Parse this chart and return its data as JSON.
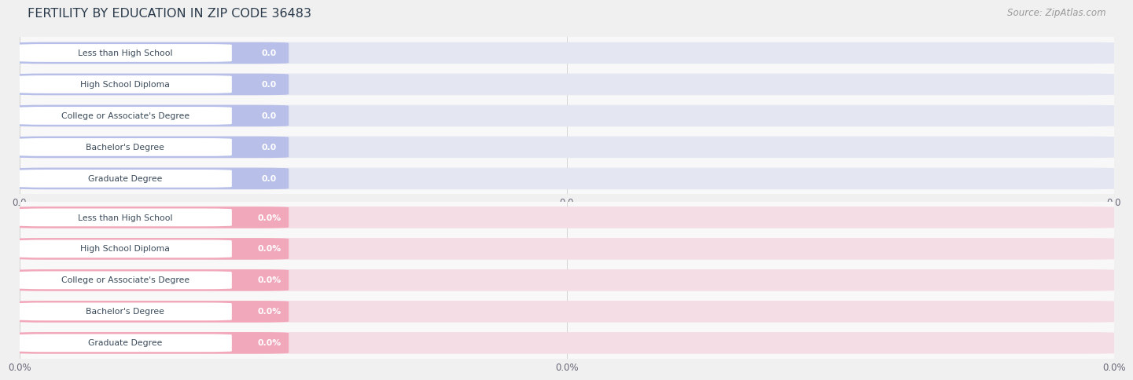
{
  "title": "FERTILITY BY EDUCATION IN ZIP CODE 36483",
  "source": "Source: ZipAtlas.com",
  "categories": [
    "Less than High School",
    "High School Diploma",
    "College or Associate's Degree",
    "Bachelor's Degree",
    "Graduate Degree"
  ],
  "values_top": [
    0.0,
    0.0,
    0.0,
    0.0,
    0.0
  ],
  "values_bottom": [
    0.0,
    0.0,
    0.0,
    0.0,
    0.0
  ],
  "bar_color_top": "#b8bfe8",
  "bar_color_bottom": "#f2a8bb",
  "bar_bg_color_top": "#e4e6f2",
  "bar_bg_color_bottom": "#f5dde5",
  "row_bg_top": "#ededf5",
  "row_bg_bottom": "#f7eef1",
  "label_bg_color": "#ffffff",
  "title_color": "#2a3a4a",
  "source_color": "#999999",
  "bar_label_color_top": "#e8eaf6",
  "bar_label_color_bottom": "#fce4ec",
  "value_label_color": "#ffffff",
  "fig_bg": "#f0f0f0",
  "subplot_bg": "#f8f8f8",
  "xtick_labels_top": [
    "0.0",
    "0.0",
    "0.0"
  ],
  "xtick_labels_bottom": [
    "0.0%",
    "0.0%",
    "0.0%"
  ],
  "figsize": [
    14.06,
    4.76
  ],
  "dpi": 100
}
